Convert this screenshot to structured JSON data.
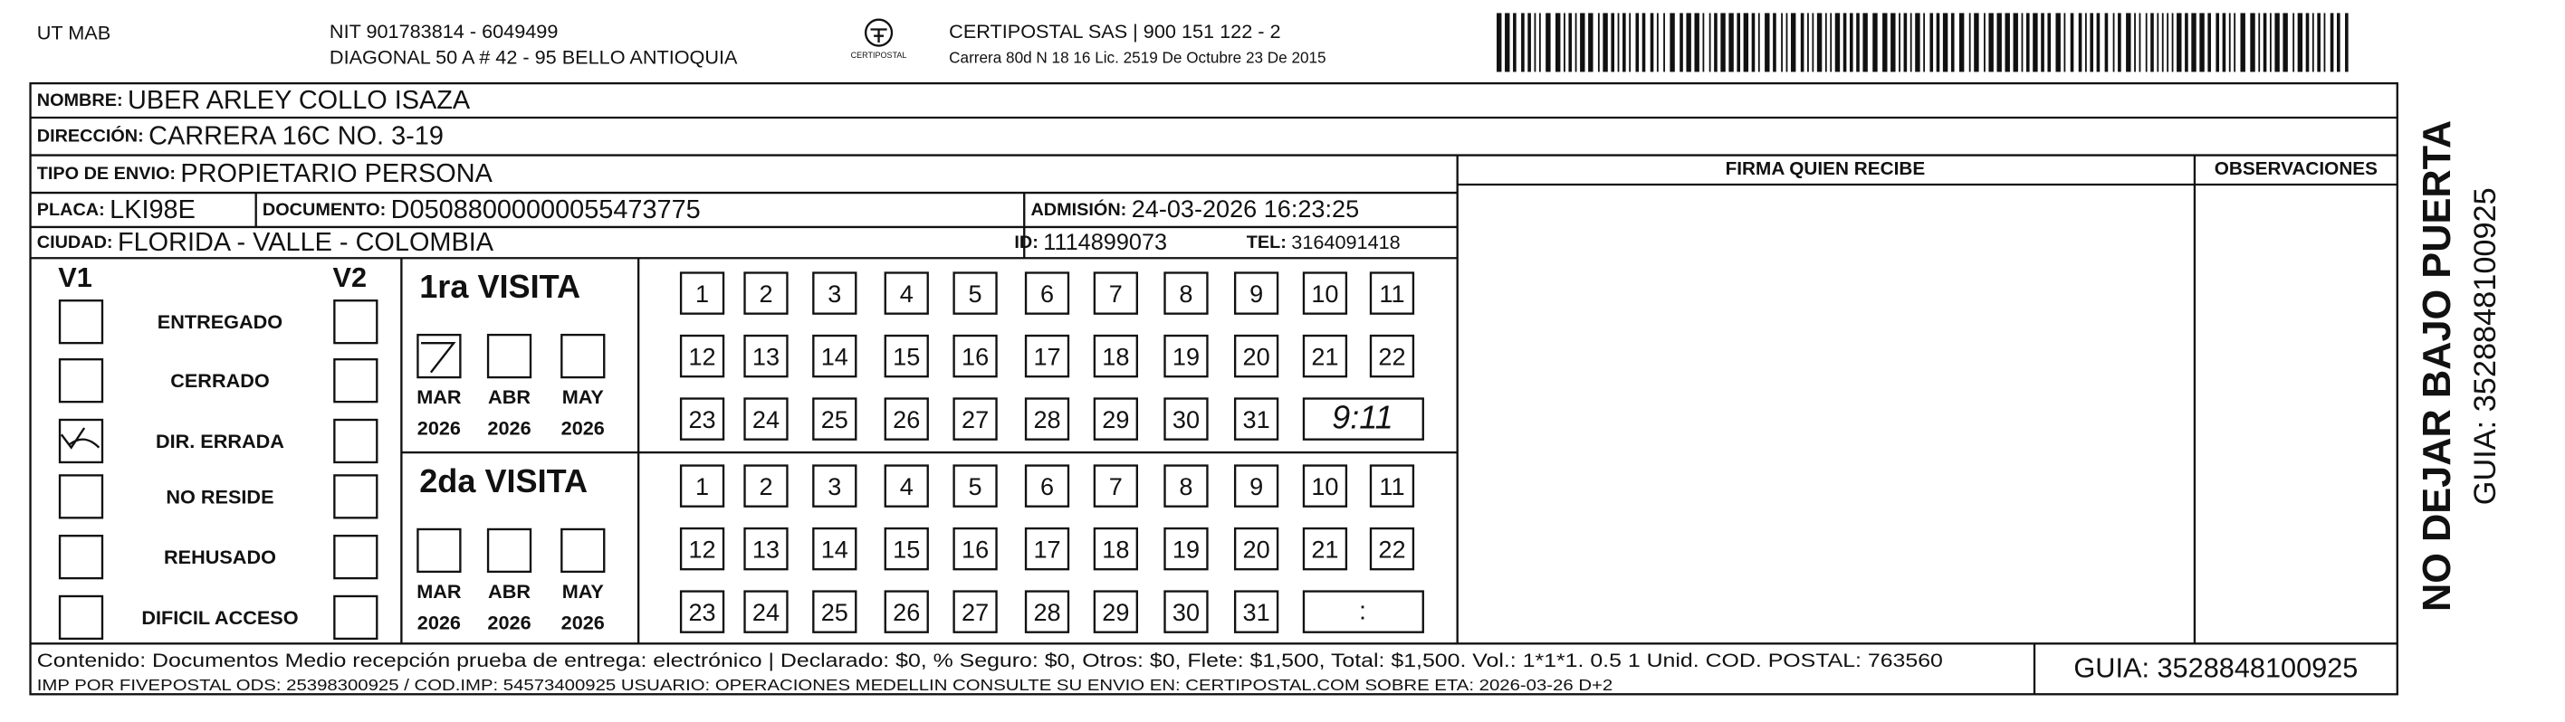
{
  "header": {
    "company": "UT MAB",
    "nit": "NIT 901783814 - 6049499",
    "address": "DIAGONAL 50 A # 42 - 95  BELLO  ANTIOQUIA",
    "logo": "CERTIPOSTAL",
    "operator": "CERTIPOSTAL SAS | 900 151 122 - 2",
    "license": "Carrera 80d N 18 16  Lic. 2519 De Octubre 23 De 2015"
  },
  "recipient": {
    "name": {
      "label": "NOMBRE:",
      "value": "UBER ARLEY COLLO ISAZA"
    },
    "address": {
      "label": "DIRECCIÓN:",
      "value": "CARRERA 16C NO. 3-19"
    },
    "shipment_type": {
      "label": "TIPO DE ENVIO:",
      "value": "PROPIETARIO PERSONA"
    },
    "plate": {
      "label": "PLACA:",
      "value": "LKI98E"
    },
    "document": {
      "label": "DOCUMENTO:",
      "value": "D05088000000055473775"
    },
    "admission": {
      "label": "ADMISIÓN:",
      "value": "24-03-2026 16:23:25"
    },
    "city": {
      "label": "CIUDAD:",
      "value": "FLORIDA - VALLE - COLOMBIA"
    },
    "id": {
      "label": "ID:",
      "value": "1114899073"
    },
    "phone": {
      "label": "TEL:",
      "value": "3164091418"
    }
  },
  "columns": {
    "signature": "FIRMA QUIEN RECIBE",
    "observations": "OBSERVACIONES"
  },
  "status": {
    "v1": "V1",
    "v2": "V2",
    "options": [
      "ENTREGADO",
      "CERRADO",
      "DIR. ERRADA",
      "NO RESIDE",
      "REHUSADO",
      "DIFICIL ACCESO"
    ]
  },
  "visits": [
    {
      "title": "1ra VISITA",
      "time": "9:11"
    },
    {
      "title": "2da VISITA",
      "time": ":"
    }
  ],
  "months": [
    "MAR",
    "ABR",
    "MAY"
  ],
  "years": [
    "2026",
    "2026",
    "2026"
  ],
  "days": [
    "1",
    "2",
    "3",
    "4",
    "5",
    "6",
    "7",
    "8",
    "9",
    "10",
    "11",
    "12",
    "13",
    "14",
    "15",
    "16",
    "17",
    "18",
    "19",
    "20",
    "21",
    "22",
    "23",
    "24",
    "25",
    "26",
    "27",
    "28",
    "29",
    "30",
    "31"
  ],
  "footer": {
    "contents": "Contenido: Documentos Medio recepción prueba de entrega: electrónico | Declarado: $0, % Seguro: $0, Otros: $0, Flete: $1,500, Total: $1,500. Vol.: 1*1*1. 0.5  1 Unid. COD. POSTAL: 763560",
    "imp": "IMP POR FIVEPOSTAL ODS: 25398300925 / COD.IMP: 54573400925 USUARIO: OPERACIONES MEDELLIN CONSULTE SU ENVIO EN: CERTIPOSTAL.COM SOBRE ETA: 2026-03-26 D+2",
    "guide": "GUIA: 3528848100925"
  },
  "side": {
    "notice": "NO DEJAR BAJO PUERTA",
    "guide": "GUIA: 3528848100925"
  }
}
